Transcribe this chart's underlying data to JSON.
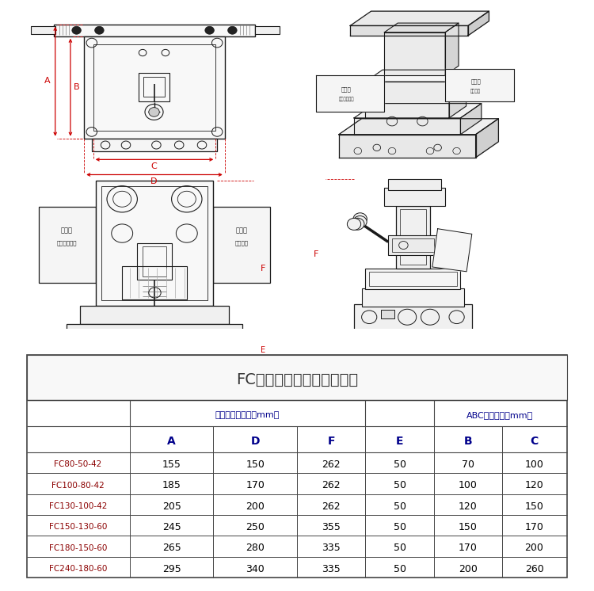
{
  "title": "FC型万能测试胚架主要尺寸",
  "subtitle1": "胚架尺寸长宽高（mm）",
  "subtitle2": "ABC三板尺寸（mm）",
  "col_headers": [
    "",
    "A",
    "D",
    "F",
    "E",
    "B",
    "C"
  ],
  "rows": [
    [
      "FC80-50-42",
      "155",
      "150",
      "262",
      "50",
      "70",
      "100"
    ],
    [
      "FC100-80-42",
      "185",
      "170",
      "262",
      "50",
      "100",
      "120"
    ],
    [
      "FC130-100-42",
      "205",
      "200",
      "262",
      "50",
      "120",
      "150"
    ],
    [
      "FC150-130-60",
      "245",
      "250",
      "355",
      "50",
      "150",
      "170"
    ],
    [
      "FC180-150-60",
      "265",
      "280",
      "335",
      "50",
      "170",
      "200"
    ],
    [
      "FC240-180-60",
      "295",
      "340",
      "335",
      "50",
      "200",
      "260"
    ]
  ],
  "label_left_top": [
    "备用板",
    "万能测试胚型"
  ],
  "label_right_top": [
    "备用板",
    "万能胚架"
  ],
  "bg_color": "#ffffff",
  "line_color": "#1a1a1a",
  "red_color": "#cc0000",
  "table_border_color": "#444444",
  "header_text_color": "#00008b",
  "data_text_color": "#000000",
  "row_label_color": "#8b0000",
  "title_color": "#333333"
}
